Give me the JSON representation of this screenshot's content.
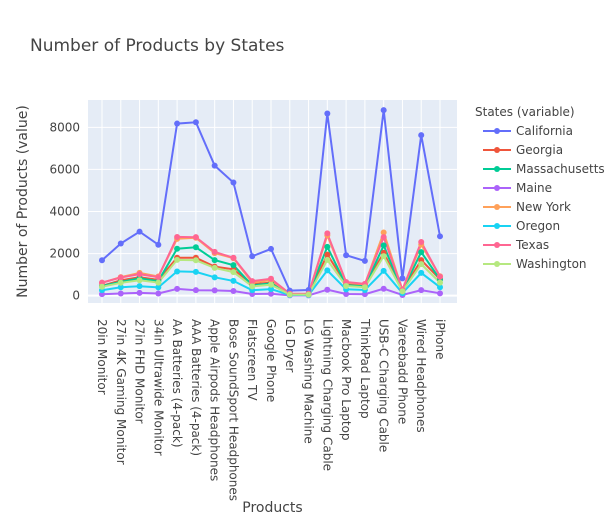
{
  "chart_data": {
    "type": "line",
    "title": "Number of Products by States",
    "xlabel": "Products",
    "ylabel": "Number of Products (value)",
    "legend_title": "States (variable)",
    "legend_position": "right",
    "ylim": [
      -350,
      9300
    ],
    "yticks": [
      0,
      2000,
      4000,
      6000,
      8000
    ],
    "ytick_labels": [
      "0",
      "2000",
      "4000",
      "6000",
      "8000"
    ],
    "grid": true,
    "plot_bg": "#e5ecf6",
    "categories": [
      "20in Monitor",
      "27in 4K Gaming Monitor",
      "27in FHD Monitor",
      "34in Ultrawide Monitor",
      "AA Batteries (4-pack)",
      "AAA Batteries (4-pack)",
      "Apple Airpods Headphones",
      "Bose SoundSport Headphones",
      "Flatscreen TV",
      "Google Phone",
      "LG Dryer",
      "LG Washing Machine",
      "Lightning Charging Cable",
      "Macbook Pro Laptop",
      "ThinkPad Laptop",
      "USB-C Charging Cable",
      "Vareebadd Phone",
      "Wired Headphones",
      "iPhone"
    ],
    "series": [
      {
        "name": "California",
        "color": "#636efa",
        "values": [
          1680,
          2480,
          3040,
          2420,
          8180,
          8240,
          6180,
          5380,
          1870,
          2220,
          240,
          270,
          8660,
          1920,
          1650,
          8820,
          820,
          7630,
          2820
        ]
      },
      {
        "name": "Georgia",
        "color": "#ef553b",
        "values": [
          470,
          730,
          870,
          750,
          1800,
          1800,
          1380,
          1250,
          550,
          620,
          70,
          70,
          1950,
          560,
          480,
          2040,
          240,
          1690,
          780
        ]
      },
      {
        "name": "Massachusetts",
        "color": "#00cc96",
        "values": [
          460,
          660,
          820,
          690,
          2230,
          2300,
          1690,
          1450,
          490,
          580,
          60,
          60,
          2320,
          500,
          440,
          2390,
          220,
          2070,
          770
        ]
      },
      {
        "name": "Maine",
        "color": "#ab63fa",
        "values": [
          70,
          100,
          130,
          100,
          320,
          260,
          250,
          220,
          80,
          90,
          10,
          10,
          280,
          80,
          70,
          330,
          30,
          260,
          110
        ]
      },
      {
        "name": "New York",
        "color": "#ffa15a",
        "values": [
          610,
          880,
          1080,
          910,
          2700,
          2750,
          2020,
          1780,
          620,
          740,
          80,
          80,
          2870,
          620,
          540,
          3000,
          270,
          2430,
          920
        ]
      },
      {
        "name": "Oregon",
        "color": "#19d3f3",
        "values": [
          260,
          400,
          450,
          390,
          1150,
          1130,
          870,
          700,
          260,
          310,
          30,
          30,
          1200,
          300,
          270,
          1180,
          120,
          1080,
          400
        ]
      },
      {
        "name": "Texas",
        "color": "#ff6692",
        "values": [
          620,
          860,
          1020,
          880,
          2790,
          2780,
          2080,
          1800,
          690,
          800,
          90,
          90,
          2960,
          650,
          560,
          2780,
          280,
          2550,
          900
        ]
      },
      {
        "name": "Washington",
        "color": "#b6e880",
        "values": [
          420,
          610,
          730,
          620,
          1700,
          1680,
          1320,
          1120,
          440,
          520,
          50,
          50,
          1700,
          460,
          400,
          1880,
          200,
          1500,
          620
        ]
      }
    ]
  }
}
